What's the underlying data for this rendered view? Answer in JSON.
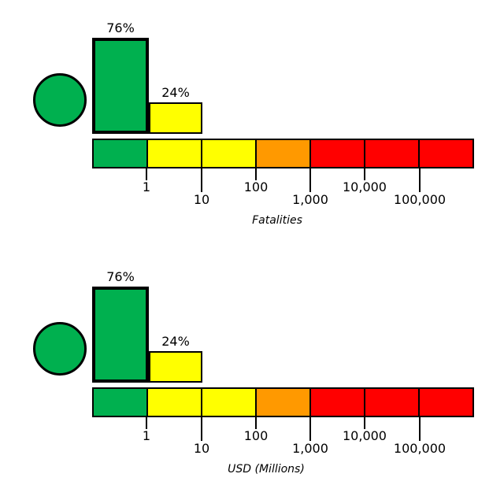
{
  "colors": {
    "green": "#00B04F",
    "yellow": "#FFFF00",
    "orange": "#FF9900",
    "red": "#FF0000",
    "edge": "#000000",
    "background": "#FFFFFF"
  },
  "panels": [
    {
      "axis_label": "Fatalities",
      "alert_level": "green",
      "bars": [
        {
          "label": "76%",
          "value": 76,
          "color": "green"
        },
        {
          "label": "24%",
          "value": 24,
          "color": "yellow"
        }
      ],
      "scale_segments": [
        "green",
        "yellow",
        "yellow",
        "orange",
        "red",
        "red",
        "red"
      ],
      "ticks": [
        "1",
        "10",
        "100",
        "1,000",
        "10,000",
        "100,000"
      ]
    },
    {
      "axis_label": "USD (Millions)",
      "alert_level": "green",
      "bars": [
        {
          "label": "76%",
          "value": 76,
          "color": "green"
        },
        {
          "label": "24%",
          "value": 24,
          "color": "yellow"
        }
      ],
      "scale_segments": [
        "green",
        "yellow",
        "yellow",
        "orange",
        "red",
        "red",
        "red"
      ],
      "ticks": [
        "1",
        "10",
        "100",
        "1,000",
        "10,000",
        "100,000"
      ]
    }
  ],
  "chart_data": [
    {
      "type": "bar",
      "xlabel": "Fatalities",
      "axis_scale": "log",
      "alert_level": "green",
      "bars": [
        {
          "bin": "< 1",
          "value_pct": 76,
          "label": "76%",
          "color": "green"
        },
        {
          "bin": "1 - 10",
          "value_pct": 24,
          "label": "24%",
          "color": "yellow"
        }
      ],
      "color_scale": {
        "segments": [
          "green",
          "yellow",
          "yellow",
          "orange",
          "red",
          "red",
          "red"
        ],
        "tick_labels": [
          "1",
          "10",
          "100",
          "1,000",
          "10,000",
          "100,000"
        ]
      }
    },
    {
      "type": "bar",
      "xlabel": "USD (Millions)",
      "axis_scale": "log",
      "alert_level": "green",
      "bars": [
        {
          "bin": "< 1",
          "value_pct": 76,
          "label": "76%",
          "color": "green"
        },
        {
          "bin": "1 - 10",
          "value_pct": 24,
          "label": "24%",
          "color": "yellow"
        }
      ],
      "color_scale": {
        "segments": [
          "green",
          "yellow",
          "yellow",
          "orange",
          "red",
          "red",
          "red"
        ],
        "tick_labels": [
          "1",
          "10",
          "100",
          "1,000",
          "10,000",
          "100,000"
        ]
      }
    }
  ]
}
